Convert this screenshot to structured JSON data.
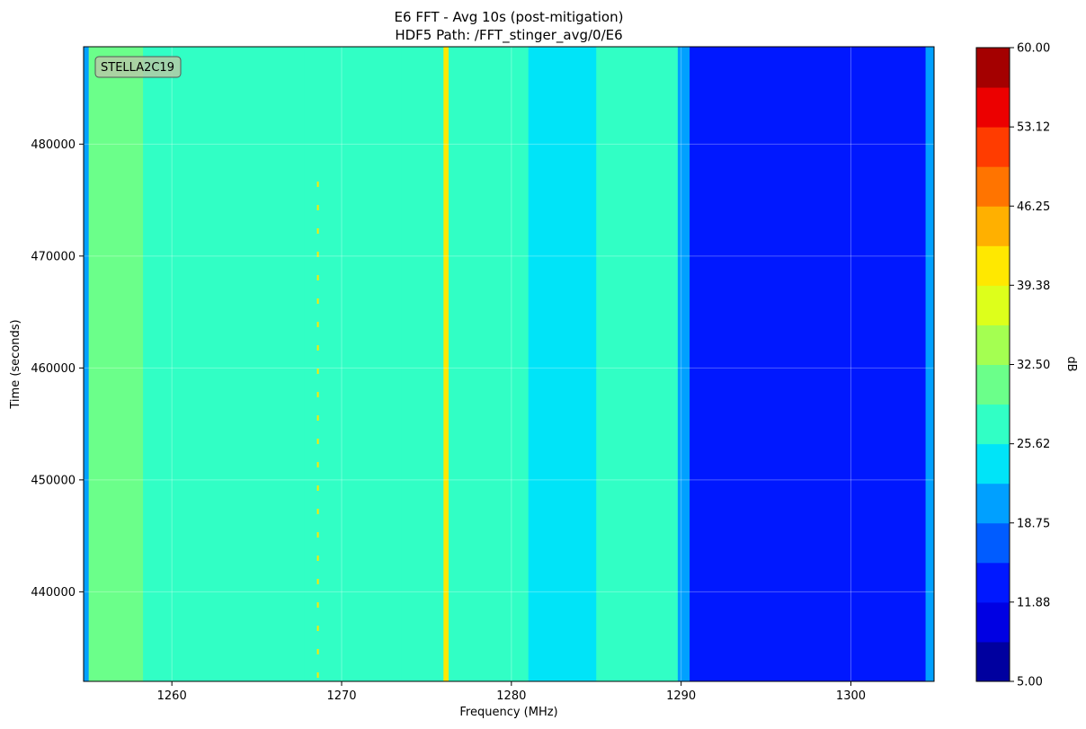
{
  "chart_data": {
    "type": "heatmap",
    "title": "E6 FFT - Avg 10s (post-mitigation)",
    "subtitle": "HDF5 Path: /FFT_stinger_avg/0/E6",
    "xlabel": "Frequency (MHz)",
    "ylabel": "Time (seconds)",
    "xlim": [
      1254.8,
      1304.9
    ],
    "ylim": [
      432000,
      488700
    ],
    "x_ticks": [
      1260,
      1270,
      1280,
      1290,
      1300
    ],
    "y_ticks": [
      440000,
      450000,
      460000,
      470000,
      480000
    ],
    "grid": true,
    "annotation": "STELLA2C19",
    "colorbar": {
      "label": "dB",
      "range": [
        5,
        60
      ],
      "tick_values": [
        5,
        11.88,
        18.75,
        25.62,
        32.5,
        39.38,
        46.25,
        53.12,
        60
      ],
      "tick_labels": [
        "5.00",
        "11.88",
        "18.75",
        "25.62",
        "32.50",
        "39.38",
        "46.25",
        "53.12",
        "60.00"
      ],
      "levels": 16,
      "colormap": "jet",
      "colors": [
        "#00009f",
        "#0000e3",
        "#0018ff",
        "#005cff",
        "#00a0ff",
        "#00e4f8",
        "#31ffc5",
        "#6bff8a",
        "#a4ff51",
        "#ddff1b",
        "#ffe800",
        "#ffb000",
        "#ff7400",
        "#ff3c00",
        "#ec0000",
        "#a40000"
      ]
    },
    "frequency_bands": [
      {
        "x0": 1254.8,
        "x1": 1255.1,
        "db": 20
      },
      {
        "x0": 1255.1,
        "x1": 1258.3,
        "db": 31
      },
      {
        "x0": 1258.3,
        "x1": 1266.0,
        "db": 28
      },
      {
        "x0": 1266.0,
        "x1": 1267.8,
        "db": 29
      },
      {
        "x0": 1267.8,
        "x1": 1273.5,
        "db": 28
      },
      {
        "x0": 1273.5,
        "x1": 1276.0,
        "db": 26
      },
      {
        "x0": 1276.0,
        "x1": 1276.3,
        "db": 40
      },
      {
        "x0": 1276.3,
        "x1": 1281.0,
        "db": 28
      },
      {
        "x0": 1281.0,
        "x1": 1285.0,
        "db": 25
      },
      {
        "x0": 1285.0,
        "x1": 1289.8,
        "db": 28
      },
      {
        "x0": 1289.8,
        "x1": 1290.5,
        "db": 19
      },
      {
        "x0": 1290.5,
        "x1": 1304.4,
        "db": 12
      },
      {
        "x0": 1304.4,
        "x1": 1304.9,
        "db": 21
      }
    ],
    "intermittent_signal": {
      "x": 1268.6,
      "db": 40
    }
  }
}
